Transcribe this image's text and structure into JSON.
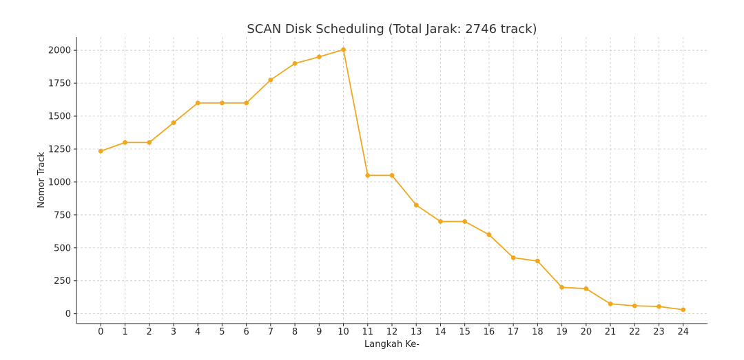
{
  "chart_data": {
    "type": "line",
    "title": "SCAN Disk Scheduling (Total Jarak: 2746 track)",
    "xlabel": "Langkah Ke-",
    "ylabel": "Nomor Track",
    "x": [
      0,
      1,
      2,
      3,
      4,
      5,
      6,
      7,
      8,
      9,
      10,
      11,
      12,
      13,
      14,
      15,
      16,
      17,
      18,
      19,
      20,
      21,
      22,
      23,
      24
    ],
    "x_tick_labels": [
      "0",
      "1",
      "2",
      "3",
      "4",
      "5",
      "6",
      "7",
      "8",
      "9",
      "10",
      "11",
      "12",
      "13",
      "14",
      "15",
      "16",
      "17",
      "18",
      "19",
      "20",
      "21",
      "22",
      "23",
      "24"
    ],
    "y_ticks": [
      0,
      250,
      500,
      750,
      1000,
      1250,
      1500,
      1750,
      2000
    ],
    "y_tick_labels": [
      "0",
      "250",
      "500",
      "750",
      "1000",
      "1250",
      "1500",
      "1750",
      "2000"
    ],
    "series": [
      {
        "values": [
          1234,
          1300,
          1300,
          1450,
          1600,
          1600,
          1600,
          1775,
          1900,
          1950,
          2005,
          1050,
          1050,
          825,
          700,
          700,
          600,
          425,
          400,
          200,
          190,
          75,
          60,
          55,
          30
        ],
        "color": "#f0a81e",
        "marker": "circle"
      }
    ],
    "xlim": [
      -1,
      25
    ],
    "ylim": [
      -75,
      2100
    ],
    "grid": true,
    "grid_style": "dashed",
    "legend": "none"
  }
}
